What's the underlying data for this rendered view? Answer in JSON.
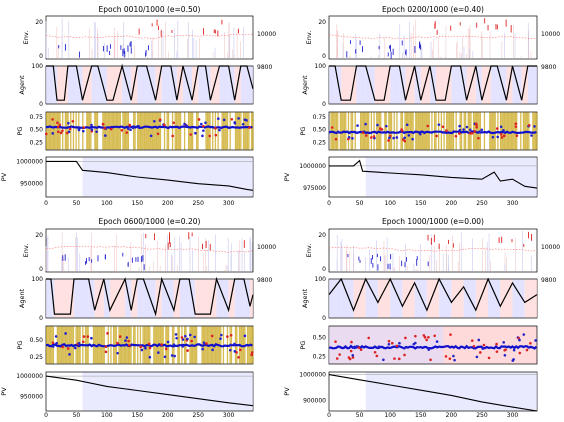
{
  "figure": {
    "panels": [
      {
        "title": "Epoch 0010/1000 (e=0.50)",
        "pg_ticks": [
          "0.75",
          "0.50",
          "0.25"
        ],
        "pv_ticks": [
          "1000000",
          "950000"
        ],
        "agent_ticks": [
          "100",
          "0"
        ]
      },
      {
        "title": "Epoch 0200/1000 (e=0.40)",
        "pg_ticks": [
          "0.75",
          "0.50",
          "0.25"
        ],
        "pv_ticks": [
          "1000000",
          "975000"
        ],
        "agent_ticks": [
          "100",
          "0"
        ]
      },
      {
        "title": "Epoch 0600/1000 (e=0.20)",
        "pg_ticks": [
          "0.50",
          "0.25"
        ],
        "pv_ticks": [
          "1000000",
          "950000"
        ],
        "agent_ticks": [
          "100",
          "0"
        ]
      },
      {
        "title": "Epoch 1000/1000 (e=0.00)",
        "pg_ticks": [
          "0.50",
          "0.25"
        ],
        "pv_ticks": [
          "1000000",
          "900000"
        ],
        "agent_ticks": [
          "100",
          "0"
        ]
      }
    ],
    "labels": {
      "env": "Env.",
      "agent": "Agent",
      "pg": "PG",
      "pv": "PV"
    },
    "env_left_ticks": [
      "20",
      "0"
    ],
    "env_right_ticks": [
      "10000",
      "9800"
    ],
    "x_ticks": [
      "0",
      "50",
      "100",
      "150",
      "200",
      "250",
      "300"
    ],
    "colors": {
      "price": "#ff7070",
      "buy": "#2222cc",
      "sell": "#dd2222",
      "pg_fill": "#c8a415",
      "pg_line": "#1111cc",
      "buy_bg": "#dcdcff",
      "sell_bg": "#ffdada"
    }
  },
  "chart_data": [
    {
      "type": "line",
      "title": "Epoch 0010/1000 (e=0.50)",
      "x_range": [
        0,
        340
      ],
      "subplots": {
        "Env.": {
          "ylim_left": [
            0,
            22
          ],
          "ylim_right": [
            9780,
            10030
          ]
        },
        "Agent": {
          "ylim": [
            0,
            100
          ],
          "series": [
            {
              "x": [
                0,
                12,
                18,
                30,
                36,
                50,
                60,
                75,
                85,
                100,
                110,
                125,
                140,
                150,
                165,
                180,
                190,
                205,
                215,
                225,
                240,
                250,
                262,
                270,
                285,
                300,
                310,
                320,
                330,
                340
              ],
              "y": [
                100,
                100,
                10,
                10,
                100,
                100,
                10,
                100,
                100,
                10,
                10,
                100,
                10,
                100,
                100,
                10,
                100,
                100,
                10,
                100,
                10,
                100,
                100,
                10,
                100,
                100,
                10,
                100,
                100,
                40
              ]
            }
          ]
        },
        "PG": {
          "ylim": [
            0.1,
            0.85
          ],
          "mean": 0.55
        },
        "PV": {
          "ylim": [
            920000,
            1010000
          ],
          "series": [
            {
              "x": [
                0,
                50,
                60,
                100,
                150,
                200,
                250,
                300,
                330,
                340
              ],
              "y": [
                1000000,
                1000000,
                980000,
                975000,
                965000,
                958000,
                950000,
                945000,
                937000,
                935000
              ]
            }
          ]
        }
      }
    },
    {
      "type": "line",
      "title": "Epoch 0200/1000 (e=0.40)",
      "x_range": [
        0,
        340
      ],
      "subplots": {
        "Env.": {
          "ylim_left": [
            0,
            22
          ],
          "ylim_right": [
            9780,
            10030
          ]
        },
        "Agent": {
          "ylim": [
            0,
            100
          ],
          "series": [
            {
              "x": [
                0,
                10,
                20,
                35,
                45,
                60,
                75,
                90,
                100,
                115,
                125,
                140,
                150,
                165,
                175,
                190,
                200,
                215,
                225,
                240,
                250,
                265,
                275,
                290,
                300,
                315,
                325,
                340
              ],
              "y": [
                100,
                100,
                10,
                10,
                100,
                100,
                10,
                10,
                100,
                100,
                10,
                100,
                10,
                100,
                10,
                10,
                100,
                100,
                10,
                100,
                10,
                100,
                100,
                10,
                100,
                10,
                100,
                100
              ]
            }
          ]
        },
        "PG": {
          "ylim": [
            0.1,
            0.85
          ],
          "mean": 0.45
        },
        "PV": {
          "ylim": [
            965000,
            1010000
          ],
          "series": [
            {
              "x": [
                0,
                40,
                50,
                55,
                100,
                150,
                200,
                250,
                270,
                280,
                300,
                320,
                340
              ],
              "y": [
                1000000,
                1000000,
                1006000,
                994000,
                992000,
                990000,
                987000,
                985000,
                993000,
                983000,
                985000,
                977000,
                975000
              ]
            }
          ]
        }
      }
    },
    {
      "type": "line",
      "title": "Epoch 0600/1000 (e=0.20)",
      "x_range": [
        0,
        340
      ],
      "subplots": {
        "Env.": {
          "ylim_left": [
            0,
            22
          ],
          "ylim_right": [
            9780,
            10030
          ]
        },
        "Agent": {
          "ylim": [
            0,
            100
          ],
          "series": [
            {
              "x": [
                0,
                8,
                14,
                40,
                46,
                70,
                80,
                95,
                105,
                130,
                140,
                150,
                160,
                180,
                190,
                210,
                220,
                235,
                245,
                270,
                280,
                300,
                310,
                325,
                335,
                340
              ],
              "y": [
                100,
                100,
                10,
                10,
                100,
                100,
                20,
                100,
                20,
                100,
                20,
                100,
                100,
                10,
                100,
                20,
                100,
                100,
                10,
                10,
                100,
                20,
                100,
                100,
                30,
                60
              ]
            }
          ]
        },
        "PG": {
          "ylim": [
            0.15,
            0.7
          ],
          "mean": 0.42
        },
        "PV": {
          "ylim": [
            915000,
            1010000
          ],
          "series": [
            {
              "x": [
                0,
                50,
                100,
                150,
                200,
                250,
                300,
                340
              ],
              "y": [
                1000000,
                990000,
                975000,
                965000,
                955000,
                945000,
                935000,
                928000
              ]
            }
          ]
        }
      }
    },
    {
      "type": "line",
      "title": "Epoch 1000/1000 (e=0.00)",
      "x_range": [
        0,
        340
      ],
      "subplots": {
        "Env.": {
          "ylim_left": [
            0,
            22
          ],
          "ylim_right": [
            9780,
            10030
          ]
        },
        "Agent": {
          "ylim": [
            0,
            100
          ],
          "series": [
            {
              "x": [
                0,
                20,
                40,
                60,
                80,
                100,
                120,
                140,
                160,
                180,
                200,
                220,
                240,
                260,
                280,
                300,
                320,
                340
              ],
              "y": [
                60,
                100,
                20,
                100,
                40,
                100,
                30,
                90,
                20,
                100,
                40,
                80,
                20,
                100,
                30,
                90,
                40,
                60
              ]
            }
          ]
        },
        "PG": {
          "ylim": [
            0.15,
            0.65
          ],
          "mean": 0.37
        },
        "PV": {
          "ylim": [
            860000,
            1010000
          ],
          "series": [
            {
              "x": [
                0,
                50,
                100,
                150,
                200,
                250,
                300,
                340
              ],
              "y": [
                1000000,
                980000,
                960000,
                940000,
                920000,
                895000,
                875000,
                860000
              ]
            }
          ]
        }
      }
    }
  ]
}
